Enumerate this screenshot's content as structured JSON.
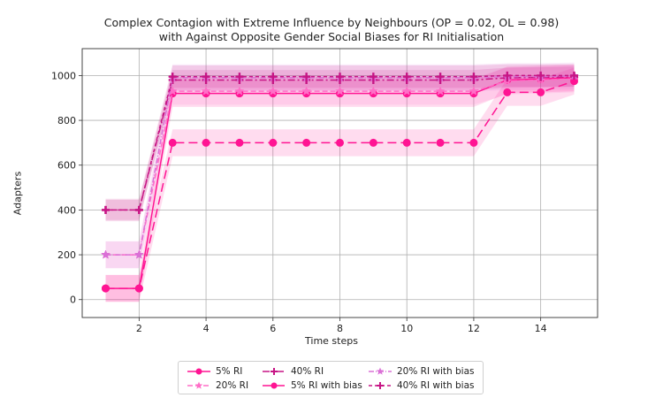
{
  "chart_data": {
    "type": "line",
    "title_line1": "Complex Contagion with Extreme Influence by Neighbours (OP = 0.02, OL = 0.98)",
    "title_line2": "with Against Opposite Gender Social Biases for RI Initialisation",
    "xlabel": "Time steps",
    "ylabel": "Adapters",
    "xlim": [
      0.3,
      15.7
    ],
    "ylim": [
      -80,
      1120
    ],
    "xticks": [
      2,
      4,
      6,
      8,
      10,
      12,
      14
    ],
    "yticks": [
      0,
      200,
      400,
      600,
      800,
      1000
    ],
    "grid": true,
    "legend_position": "bottom-center",
    "x": [
      1,
      2,
      3,
      4,
      5,
      6,
      7,
      8,
      9,
      10,
      11,
      12,
      13,
      14,
      15
    ],
    "series": [
      {
        "name": "5% RI",
        "color": "#ff1493",
        "dash": "",
        "marker": "circle",
        "values": [
          50,
          50,
          920,
          920,
          920,
          920,
          920,
          920,
          920,
          920,
          920,
          920,
          980,
          985,
          990
        ],
        "band": 60
      },
      {
        "name": "20% RI",
        "color": "#ff6ec7",
        "dash": "6,3",
        "marker": "star",
        "values": [
          200,
          200,
          930,
          930,
          930,
          930,
          930,
          930,
          930,
          930,
          930,
          930,
          975,
          980,
          985
        ],
        "band": 60
      },
      {
        "name": "40% RI",
        "color": "#c71585",
        "dash": "8,3,2,3",
        "marker": "plus",
        "values": [
          400,
          400,
          980,
          980,
          980,
          980,
          980,
          980,
          980,
          980,
          980,
          980,
          990,
          992,
          995
        ],
        "band": 45
      },
      {
        "name": "5% RI with bias",
        "color": "#ff1493",
        "dash": "10,5",
        "marker": "circle",
        "values": [
          50,
          50,
          700,
          700,
          700,
          700,
          700,
          700,
          700,
          700,
          700,
          700,
          925,
          925,
          975
        ],
        "band": 60
      },
      {
        "name": "20% RI with bias",
        "color": "#da70d6",
        "dash": "6,2,1,2",
        "marker": "star",
        "values": [
          200,
          200,
          990,
          990,
          990,
          990,
          990,
          990,
          990,
          990,
          990,
          990,
          995,
          995,
          998
        ],
        "band": 60
      },
      {
        "name": "40% RI with bias",
        "color": "#c71585",
        "dash": "4,3",
        "marker": "plus",
        "values": [
          400,
          400,
          995,
          995,
          995,
          995,
          995,
          995,
          995,
          995,
          995,
          995,
          1000,
          1000,
          1000
        ],
        "band": 50
      }
    ]
  }
}
